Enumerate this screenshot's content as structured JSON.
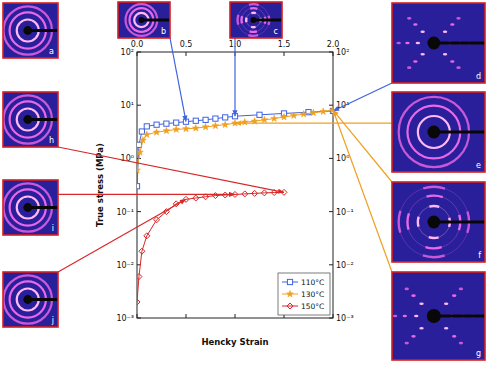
{
  "chart_data": {
    "type": "line",
    "x_label": "Hencky Strain",
    "y_label": "True stress (MPa)",
    "log": "y",
    "grid": false,
    "legend": "lower right",
    "xlim": [
      0,
      2
    ],
    "xticks": [
      {
        "value": 0,
        "label": "0.0"
      },
      0.5,
      {
        "value": 1,
        "label": "1.0"
      },
      1.5,
      {
        "value": 2,
        "label": "2.0"
      }
    ],
    "ylim": [
      0.001,
      100
    ],
    "yticks": [
      {
        "value": 0.001,
        "label": "10⁻³"
      },
      {
        "value": 0.01,
        "label": "10⁻²"
      },
      {
        "value": 0.1,
        "label": "10⁻¹"
      },
      {
        "value": 1,
        "label": "10⁰"
      },
      {
        "value": 10,
        "label": "10¹"
      },
      {
        "value": 100,
        "label": "10²"
      }
    ],
    "series": [
      {
        "name": "110°C",
        "color": "#3f63e0",
        "marker": "square",
        "line_style": "solid",
        "x": [
          0,
          0.02,
          0.05,
          0.1,
          0.2,
          0.3,
          0.4,
          0.5,
          0.6,
          0.7,
          0.8,
          0.9,
          1.0,
          1.25,
          1.5,
          1.75,
          2.0
        ],
        "values": [
          0.3,
          1.8,
          3.2,
          4.0,
          4.3,
          4.5,
          4.7,
          4.9,
          5.1,
          5.3,
          5.6,
          5.9,
          6.2,
          6.6,
          7.0,
          7.4,
          7.8
        ]
      },
      {
        "name": "130°C",
        "color": "#f0a020",
        "marker": "star",
        "line_style": "solid",
        "x": [
          0,
          0.03,
          0.06,
          0.1,
          0.2,
          0.3,
          0.4,
          0.5,
          0.6,
          0.7,
          0.8,
          0.9,
          1.0,
          1.1,
          1.2,
          1.3,
          1.4,
          1.5,
          1.6,
          1.7,
          1.8,
          1.9,
          2.0
        ],
        "values": [
          0.6,
          1.3,
          2.2,
          2.8,
          3.1,
          3.3,
          3.5,
          3.6,
          3.7,
          3.9,
          4.1,
          4.3,
          4.6,
          4.8,
          5.0,
          5.3,
          5.6,
          6.0,
          6.4,
          6.8,
          7.2,
          7.6,
          8.1
        ]
      },
      {
        "name": "150°C",
        "color": "#d82828",
        "marker": "diamond",
        "line_style": "solid",
        "x": [
          0,
          0.02,
          0.05,
          0.1,
          0.2,
          0.3,
          0.4,
          0.5,
          0.6,
          0.7,
          0.8,
          0.9,
          1.0,
          1.1,
          1.2,
          1.3,
          1.4,
          1.5
        ],
        "values": [
          0.002,
          0.006,
          0.018,
          0.035,
          0.07,
          0.1,
          0.14,
          0.17,
          0.18,
          0.19,
          0.2,
          0.205,
          0.21,
          0.215,
          0.22,
          0.225,
          0.228,
          0.23
        ]
      }
    ],
    "panels": [
      {
        "label": "a"
      },
      {
        "label": "b",
        "series": 0,
        "point": 7
      },
      {
        "label": "c",
        "series": 0,
        "point": 12
      },
      {
        "label": "d",
        "series": 0,
        "point": 16
      },
      {
        "label": "e",
        "series": 1,
        "point": 12
      },
      {
        "label": "f",
        "series": 1,
        "point": 22
      },
      {
        "label": "g",
        "series": 1,
        "point": 22
      },
      {
        "label": "h",
        "series": 2,
        "point": 17
      },
      {
        "label": "i",
        "series": 2,
        "point": 12
      },
      {
        "label": "j",
        "series": 2,
        "point": 7
      }
    ]
  }
}
